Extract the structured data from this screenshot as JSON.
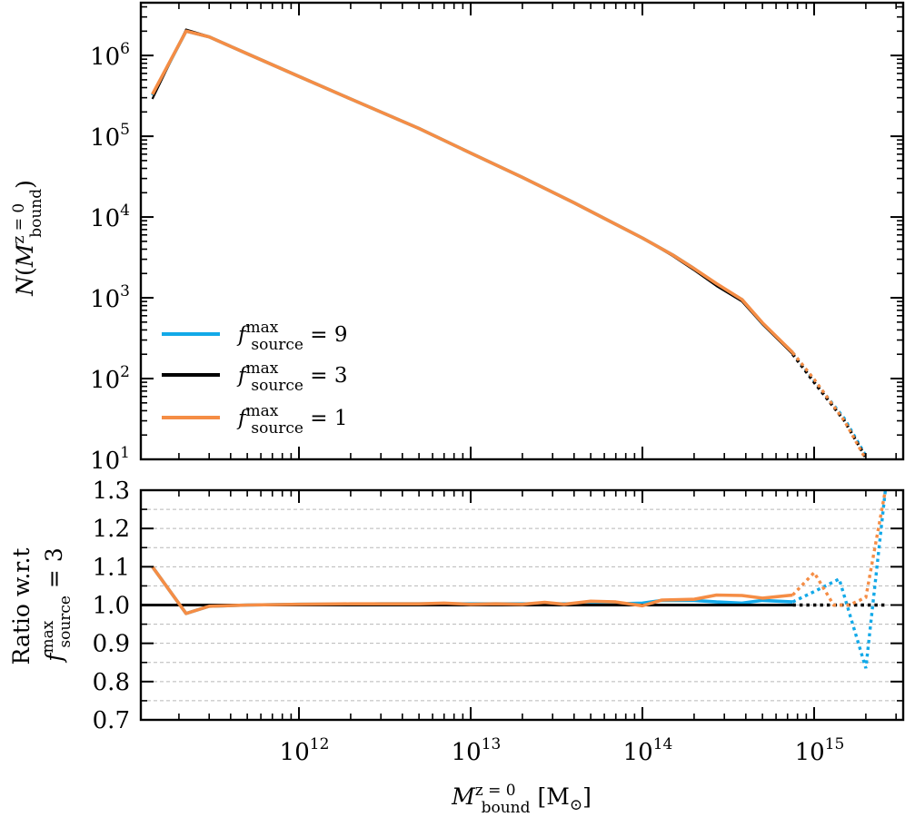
{
  "chart_data": [
    {
      "id": "top",
      "type": "line",
      "xscale": "log",
      "yscale": "log",
      "xlim": [
        120000000000.0,
        3300000000000000.0
      ],
      "ylim": [
        10,
        4500000.0
      ],
      "ylabel": "N(M_bound^{z=0})",
      "yticks": [
        {
          "value": 10,
          "base": "10",
          "exp": "1"
        },
        {
          "value": 100,
          "base": "10",
          "exp": "2"
        },
        {
          "value": 1000,
          "base": "10",
          "exp": "3"
        },
        {
          "value": 10000,
          "base": "10",
          "exp": "4"
        },
        {
          "value": 100000,
          "base": "10",
          "exp": "5"
        },
        {
          "value": 1000000,
          "base": "10",
          "exp": "6"
        }
      ],
      "legend": {
        "location": "lower-left",
        "entries": [
          {
            "name": "f9",
            "label_main": "f",
            "label_sup": "max",
            "label_sub": "source",
            "label_rest": " = 9",
            "color": "#13a9e8"
          },
          {
            "name": "f3",
            "label_main": "f",
            "label_sup": "max",
            "label_sub": "source",
            "label_rest": " = 3",
            "color": "#000000"
          },
          {
            "name": "f1",
            "label_main": "f",
            "label_sup": "max",
            "label_sub": "source",
            "label_rest": " = 1",
            "color": "#f58d45"
          }
        ]
      },
      "series": [
        {
          "name": "f9",
          "color": "#13a9e8",
          "solid_x": [
            140000000000.0,
            220000000000.0,
            300000000000.0,
            500000000000.0,
            1000000000000.0,
            2000000000000.0,
            5000000000000.0,
            10000000000000.0,
            20000000000000.0,
            40000000000000.0,
            100000000000000.0,
            150000000000000.0,
            200000000000000.0,
            270000000000000.0,
            380000000000000.0,
            500000000000000.0,
            750000000000000.0
          ],
          "solid_y": [
            320000.0,
            2000000.0,
            1700000.0,
            1050000.0,
            550000.0,
            290000.0,
            125000.0,
            62000.0,
            31000.0,
            15000.0,
            5500.0,
            3400.0,
            2300.0,
            1450.0,
            950,
            480,
            210
          ],
          "dotted_x": [
            750000000000000.0,
            1000000000000000.0,
            1500000000000000.0,
            2000000000000000.0
          ],
          "dotted_y": [
            210,
            95,
            32,
            11
          ]
        },
        {
          "name": "f3",
          "color": "#000000",
          "solid_x": [
            140000000000.0,
            220000000000.0,
            300000000000.0,
            500000000000.0,
            1000000000000.0,
            2000000000000.0,
            5000000000000.0,
            10000000000000.0,
            20000000000000.0,
            40000000000000.0,
            100000000000000.0,
            150000000000000.0,
            200000000000000.0,
            270000000000000.0,
            380000000000000.0,
            500000000000000.0,
            750000000000000.0
          ],
          "solid_y": [
            290000.0,
            2100000.0,
            1720000.0,
            1050000.0,
            550000.0,
            290000.0,
            125000.0,
            62000.0,
            31000.0,
            15000.0,
            5500.0,
            3300.0,
            2200.0,
            1400.0,
            900,
            470,
            200
          ],
          "dotted_x": [
            750000000000000.0,
            1000000000000000.0,
            1500000000000000.0,
            2000000000000000.0
          ],
          "dotted_y": [
            200,
            90,
            30,
            10.5
          ]
        },
        {
          "name": "f1",
          "color": "#f58d45",
          "solid_x": [
            140000000000.0,
            220000000000.0,
            300000000000.0,
            500000000000.0,
            1000000000000.0,
            2000000000000.0,
            5000000000000.0,
            10000000000000.0,
            20000000000000.0,
            40000000000000.0,
            100000000000000.0,
            150000000000000.0,
            200000000000000.0,
            270000000000000.0,
            380000000000000.0,
            500000000000000.0,
            750000000000000.0
          ],
          "solid_y": [
            330000.0,
            2000000.0,
            1700000.0,
            1050000.0,
            550000.0,
            290000.0,
            125000.0,
            62000.0,
            31000.0,
            15000.0,
            5500.0,
            3400.0,
            2300.0,
            1500.0,
            950,
            490,
            210
          ],
          "dotted_x": [
            750000000000000.0,
            1000000000000000.0,
            1500000000000000.0,
            2000000000000000.0
          ],
          "dotted_y": [
            210,
            98,
            30,
            10
          ]
        }
      ]
    },
    {
      "id": "bottom",
      "type": "line",
      "xscale": "log",
      "yscale": "linear",
      "xlim": [
        120000000000.0,
        3300000000000000.0
      ],
      "ylim": [
        0.7,
        1.3
      ],
      "grid": true,
      "xlabel": "M_bound^{z=0} [M_sun]",
      "ylabel": "Ratio w.r.t f_source^max = 3",
      "ylabel_line1": "Ratio w.r.t",
      "yticks": [
        {
          "value": 0.7,
          "label": "0.7"
        },
        {
          "value": 0.8,
          "label": "0.8"
        },
        {
          "value": 0.9,
          "label": "0.9"
        },
        {
          "value": 1.0,
          "label": "1.0"
        },
        {
          "value": 1.1,
          "label": "1.1"
        },
        {
          "value": 1.2,
          "label": "1.2"
        },
        {
          "value": 1.3,
          "label": "1.3"
        }
      ],
      "gridlines": [
        0.75,
        0.8,
        0.85,
        0.9,
        0.95,
        1.0,
        1.05,
        1.1,
        1.15,
        1.2,
        1.25
      ],
      "xticks": [
        {
          "value": 1000000000000.0,
          "base": "10",
          "exp": "12"
        },
        {
          "value": 10000000000000.0,
          "base": "10",
          "exp": "13"
        },
        {
          "value": 100000000000000.0,
          "base": "10",
          "exp": "14"
        },
        {
          "value": 1000000000000000.0,
          "base": "10",
          "exp": "15"
        }
      ],
      "series": [
        {
          "name": "f9",
          "color": "#13a9e8",
          "solid_x": [
            140000000000.0,
            220000000000.0,
            300000000000.0,
            500000000000.0,
            1000000000000.0,
            2000000000000.0,
            3000000000000.0,
            5000000000000.0,
            7000000000000.0,
            10000000000000.0,
            14000000000000.0,
            20000000000000.0,
            27000000000000.0,
            35000000000000.0,
            50000000000000.0,
            70000000000000.0,
            100000000000000.0,
            130000000000000.0,
            200000000000000.0,
            270000000000000.0,
            380000000000000.0,
            500000000000000.0,
            750000000000000.0
          ],
          "solid_y": [
            1.1,
            0.978,
            0.997,
            1.0,
            1.002,
            1.002,
            1.003,
            1.003,
            1.003,
            1.003,
            1.003,
            1.003,
            1.003,
            1.003,
            1.003,
            1.003,
            1.005,
            1.012,
            1.012,
            1.008,
            1.005,
            1.012,
            1.008
          ],
          "dotted_x": [
            750000000000000.0,
            1000000000000000.0,
            1400000000000000.0,
            2000000000000000.0,
            2600000000000000.0
          ],
          "dotted_y": [
            1.008,
            1.035,
            1.068,
            0.835,
            1.3
          ]
        },
        {
          "name": "f3",
          "color": "#000000",
          "solid_x": [
            120000000000.0,
            750000000000000.0
          ],
          "solid_y": [
            1.0,
            1.0
          ],
          "dotted_x": [
            750000000000000.0,
            2600000000000000.0
          ],
          "dotted_y": [
            1.0,
            1.0
          ]
        },
        {
          "name": "f1",
          "color": "#f58d45",
          "solid_x": [
            140000000000.0,
            220000000000.0,
            300000000000.0,
            500000000000.0,
            1000000000000.0,
            2000000000000.0,
            3000000000000.0,
            5000000000000.0,
            7000000000000.0,
            10000000000000.0,
            14000000000000.0,
            20000000000000.0,
            27000000000000.0,
            35000000000000.0,
            50000000000000.0,
            70000000000000.0,
            100000000000000.0,
            130000000000000.0,
            200000000000000.0,
            270000000000000.0,
            380000000000000.0,
            500000000000000.0,
            750000000000000.0
          ],
          "solid_y": [
            1.1,
            0.978,
            0.997,
            1.0,
            1.002,
            1.003,
            1.003,
            1.003,
            1.005,
            1.002,
            1.003,
            1.002,
            1.007,
            1.002,
            1.01,
            1.008,
            0.998,
            1.013,
            1.015,
            1.026,
            1.025,
            1.018,
            1.026
          ],
          "dotted_x": [
            750000000000000.0,
            1000000000000000.0,
            1300000000000000.0,
            1600000000000000.0,
            2000000000000000.0,
            2600000000000000.0
          ],
          "dotted_y": [
            1.026,
            1.085,
            1.0,
            1.0,
            1.02,
            1.3
          ]
        }
      ]
    }
  ],
  "labels": {
    "top_ylabel_N": "N",
    "top_ylabel_M": "M",
    "top_ylabel_sup": "z = 0",
    "top_ylabel_sub": "bound",
    "bottom_ylabel_line1": "Ratio w.r.t",
    "bottom_ylabel_f": "f",
    "bottom_ylabel_sup": "max",
    "bottom_ylabel_sub": "source",
    "bottom_ylabel_rest": " = 3",
    "xlabel_M": "M",
    "xlabel_sup": "z = 0",
    "xlabel_sub": "bound",
    "xlabel_unit": " [M",
    "xlabel_sun": "⊙",
    "xlabel_close": "]"
  }
}
